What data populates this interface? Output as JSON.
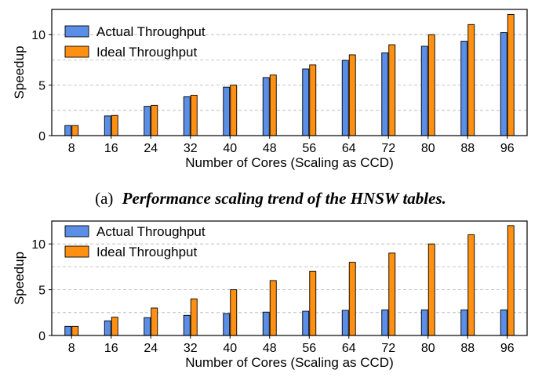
{
  "colors": {
    "actual": "#5b8ee6",
    "ideal": "#ff9012"
  },
  "chart_data": [
    {
      "type": "bar",
      "caption_prefix": "(a)",
      "caption_text": "Performance scaling trend of the HNSW tables.",
      "xlabel": "Number of Cores (Scaling as CCD)",
      "ylabel": "Speedup",
      "ylim": [
        0,
        12.5
      ],
      "yticks": [
        0,
        5,
        10
      ],
      "grid": true,
      "legend_position": "top-left",
      "categories": [
        "8",
        "16",
        "24",
        "32",
        "40",
        "48",
        "56",
        "64",
        "72",
        "80",
        "88",
        "96"
      ],
      "series": [
        {
          "name": "Actual Throughput",
          "values": [
            1.0,
            1.95,
            2.9,
            3.85,
            4.8,
            5.75,
            6.6,
            7.45,
            8.2,
            8.85,
            9.35,
            10.2
          ]
        },
        {
          "name": "Ideal Throughput",
          "values": [
            1,
            2,
            3,
            4,
            5,
            6,
            7,
            8,
            9,
            10,
            11,
            12
          ]
        }
      ]
    },
    {
      "type": "bar",
      "xlabel": "Number of Cores (Scaling as CCD)",
      "ylabel": "Speedup",
      "ylim": [
        0,
        12.5
      ],
      "yticks": [
        0,
        5,
        10
      ],
      "grid": true,
      "legend_position": "top-left",
      "categories": [
        "8",
        "16",
        "24",
        "32",
        "40",
        "48",
        "56",
        "64",
        "72",
        "80",
        "88",
        "96"
      ],
      "series": [
        {
          "name": "Actual Throughput",
          "values": [
            1.0,
            1.6,
            1.95,
            2.2,
            2.4,
            2.55,
            2.65,
            2.75,
            2.8,
            2.8,
            2.8,
            2.8
          ]
        },
        {
          "name": "Ideal Throughput",
          "values": [
            1,
            2,
            3,
            4,
            5,
            6,
            7,
            8,
            9,
            10,
            11,
            12
          ]
        }
      ]
    }
  ]
}
